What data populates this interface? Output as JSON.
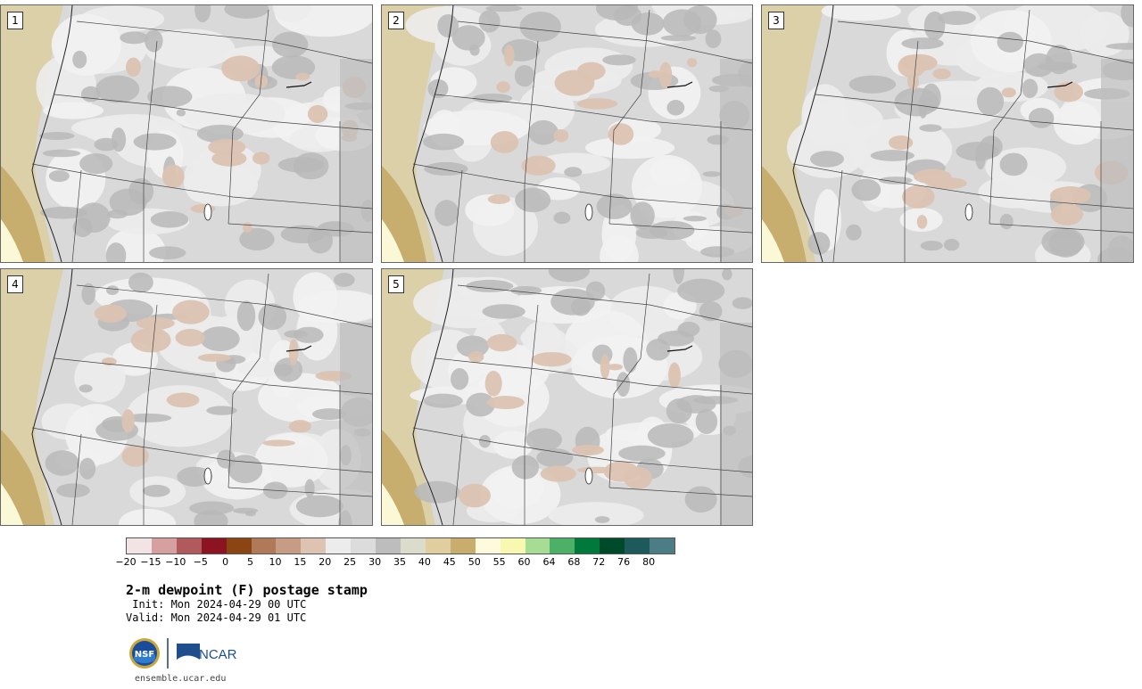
{
  "panels": [
    {
      "label": "1"
    },
    {
      "label": "2"
    },
    {
      "label": "3"
    },
    {
      "label": "4"
    },
    {
      "label": "5"
    }
  ],
  "colorbar": {
    "colors": [
      "#f2e4e4",
      "#d69fa0",
      "#b05a5d",
      "#8c1420",
      "#8b4513",
      "#b07a58",
      "#c69c84",
      "#dfc3b2",
      "#ececec",
      "#dcdcdc",
      "#bdbdbd",
      "#dcdccc",
      "#e1ce9e",
      "#c9ad6c",
      "#fdfbdc",
      "#f8f8b0",
      "#a6dc94",
      "#4cb066",
      "#007a3a",
      "#004a2c",
      "#1c5a5c",
      "#4c7c84"
    ],
    "ticks": [
      "−20",
      "−15",
      "−10",
      "−5",
      "0",
      "5",
      "10",
      "15",
      "20",
      "25",
      "30",
      "35",
      "40",
      "45",
      "50",
      "55",
      "60",
      "64",
      "68",
      "72",
      "76",
      "80"
    ]
  },
  "title": "2-m dewpoint (F) postage stamp",
  "init": " Init: Mon 2024-04-29 00 UTC",
  "valid": "Valid: Mon 2024-04-29 01 UTC",
  "logos": {
    "nsf": "NSF",
    "ncar": "NCAR"
  },
  "site": "ensemble.ucar.edu"
}
